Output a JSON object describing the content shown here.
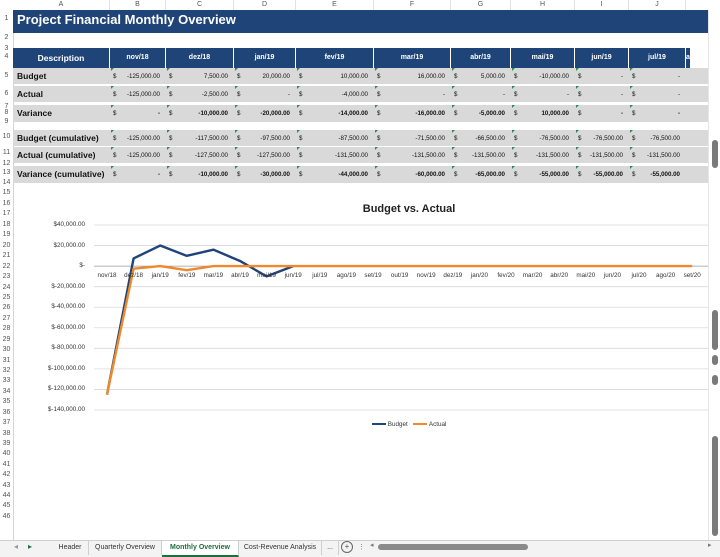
{
  "column_headers": [
    "A",
    "B",
    "C",
    "D",
    "E",
    "F",
    "G",
    "H",
    "I",
    "J"
  ],
  "row_numbers": [
    "1",
    "2",
    "3",
    "4",
    "5",
    "6",
    "7",
    "8",
    "9",
    "10",
    "11",
    "12",
    "13",
    "14",
    "15",
    "16",
    "17",
    "18",
    "19",
    "20",
    "21",
    "22",
    "23",
    "24",
    "25",
    "26",
    "27",
    "28",
    "29",
    "30",
    "31",
    "32",
    "33",
    "34",
    "35",
    "36",
    "37",
    "38",
    "39",
    "40",
    "41",
    "42",
    "43",
    "44",
    "45",
    "46"
  ],
  "sheet": {
    "title": "Project Financial Monthly Overview",
    "description_header": "Description",
    "months": [
      "nov/18",
      "dez/18",
      "jan/19",
      "fev/19",
      "mar/19",
      "abr/19",
      "mai/19",
      "jun/19",
      "jul/19",
      "a"
    ],
    "currency_symbol": "$",
    "rows": [
      {
        "label": "Budget",
        "values": [
          "-125,000.00",
          "7,500.00",
          "20,000.00",
          "10,000.00",
          "16,000.00",
          "5,000.00",
          "-10,000.00",
          "-",
          "-",
          ""
        ]
      },
      {
        "label": "Actual",
        "values": [
          "-125,000.00",
          "-2,500.00",
          "-",
          "-4,000.00",
          "-",
          "-",
          "-",
          "-",
          "-",
          ""
        ]
      },
      {
        "label": "Variance",
        "values": [
          "-",
          "-10,000.00",
          "-20,000.00",
          "-14,000.00",
          "-16,000.00",
          "-5,000.00",
          "10,000.00",
          "-",
          "-",
          ""
        ]
      },
      {
        "label": "Budget (cumulative)",
        "values": [
          "-125,000.00",
          "-117,500.00",
          "-97,500.00",
          "-87,500.00",
          "-71,500.00",
          "-66,500.00",
          "-76,500.00",
          "-76,500.00",
          "-76,500.00",
          ""
        ]
      },
      {
        "label": "Actual (cumulative)",
        "values": [
          "-125,000.00",
          "-127,500.00",
          "-127,500.00",
          "-131,500.00",
          "-131,500.00",
          "-131,500.00",
          "-131,500.00",
          "-131,500.00",
          "-131,500.00",
          ""
        ]
      },
      {
        "label": "Variance (cumulative)",
        "values": [
          "-",
          "-10,000.00",
          "-30,000.00",
          "-44,000.00",
          "-60,000.00",
          "-65,000.00",
          "-55,000.00",
          "-55,000.00",
          "-55,000.00",
          ""
        ]
      }
    ]
  },
  "chart_data": {
    "type": "line",
    "title": "Budget vs. Actual",
    "categories": [
      "nov/18",
      "dez/18",
      "jan/19",
      "fev/19",
      "mar/19",
      "abr/19",
      "mai/19",
      "jun/19",
      "jul/19",
      "ago/19",
      "set/19",
      "out/19",
      "nov/19",
      "dez/19",
      "jan/20",
      "fev/20",
      "mar/20",
      "abr/20",
      "mai/20",
      "jun/20",
      "jul/20",
      "ago/20",
      "set/20"
    ],
    "series": [
      {
        "name": "Budget",
        "color": "#1f4478",
        "values": [
          -125000,
          7500,
          20000,
          10000,
          16000,
          5000,
          -10000,
          0,
          null,
          null,
          null,
          null,
          null,
          null,
          null,
          null,
          null,
          null,
          null,
          null,
          null,
          null,
          null
        ]
      },
      {
        "name": "Actual",
        "color": "#f0892b",
        "values": [
          -125000,
          -2500,
          0,
          -4000,
          0,
          0,
          0,
          0,
          0,
          0,
          0,
          0,
          0,
          0,
          0,
          0,
          0,
          0,
          0,
          0,
          0,
          0,
          0
        ]
      }
    ],
    "ylim": [
      -140000,
      40000
    ],
    "ytick_values": [
      40000,
      20000,
      0,
      -20000,
      -40000,
      -60000,
      -80000,
      -100000,
      -120000,
      -140000
    ],
    "ytick_labels": [
      "$40,000.00",
      "$20,000.00",
      "$-",
      "$-20,000.00",
      "$-40,000.00",
      "$-60,000.00",
      "$-80,000.00",
      "$-100,000.00",
      "$-120,000.00",
      "$-140,000.00"
    ],
    "legend": [
      "Budget",
      "Actual"
    ],
    "legend_position": "bottom"
  },
  "tabs": {
    "items": [
      "Header",
      "Quarterly Overview",
      "Monthly Overview",
      "Cost-Revenue Analysis"
    ],
    "more": "...",
    "add": "+"
  }
}
